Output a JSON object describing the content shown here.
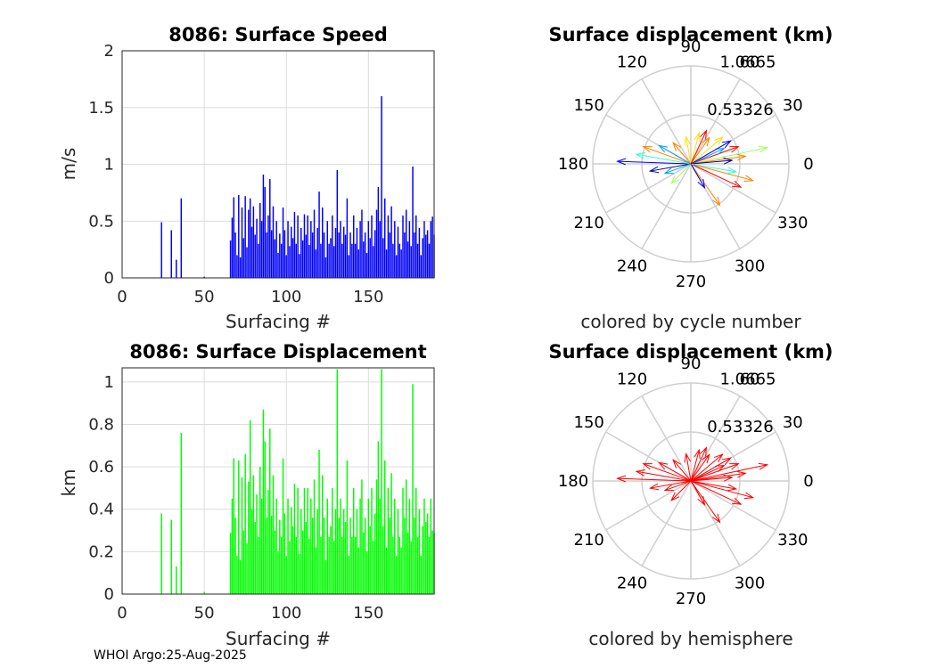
{
  "footer": "WHOI Argo:25-Aug-2025",
  "chart_data": [
    {
      "type": "bar",
      "title": "8086: Surface Speed",
      "xlabel": "Surfacing #",
      "ylabel": "m/s",
      "color": "#0000ff",
      "xlim": [
        0,
        190
      ],
      "ylim": [
        0,
        2
      ],
      "xticks": [
        0,
        50,
        100,
        150
      ],
      "xtick_labels": [
        "0",
        "50",
        "100",
        "150"
      ],
      "yticks": [
        0,
        0.5,
        1,
        1.5,
        2
      ],
      "ytick_labels": [
        "0",
        "0.5",
        "1",
        "1.5",
        "2"
      ],
      "x": [
        24,
        30,
        33,
        36,
        50,
        66,
        67,
        68,
        69,
        70,
        71,
        72,
        73,
        74,
        75,
        76,
        77,
        78,
        79,
        80,
        81,
        82,
        83,
        84,
        85,
        86,
        87,
        88,
        89,
        90,
        91,
        92,
        93,
        94,
        95,
        96,
        97,
        98,
        99,
        100,
        101,
        102,
        103,
        104,
        105,
        106,
        107,
        108,
        109,
        110,
        111,
        112,
        113,
        114,
        115,
        116,
        117,
        118,
        119,
        120,
        121,
        122,
        123,
        124,
        125,
        126,
        127,
        128,
        129,
        130,
        131,
        132,
        133,
        134,
        135,
        136,
        137,
        138,
        139,
        140,
        141,
        142,
        143,
        144,
        145,
        146,
        147,
        148,
        149,
        150,
        151,
        152,
        153,
        154,
        155,
        156,
        157,
        158,
        159,
        160,
        161,
        162,
        163,
        164,
        165,
        166,
        167,
        168,
        169,
        170,
        171,
        172,
        173,
        174,
        175,
        176,
        177,
        178,
        179,
        180,
        181,
        182,
        183,
        184,
        185,
        186,
        187,
        188,
        189,
        190
      ],
      "values": [
        0.49,
        0.42,
        0.16,
        0.7,
        0.01,
        0.33,
        0.53,
        0.71,
        0.4,
        0.2,
        0.73,
        0.18,
        0.62,
        0.35,
        0.72,
        0.27,
        0.6,
        0.7,
        0.45,
        0.63,
        0.38,
        0.52,
        0.3,
        0.66,
        0.5,
        0.91,
        0.8,
        0.4,
        0.55,
        0.87,
        0.42,
        0.63,
        0.34,
        0.5,
        0.22,
        0.39,
        0.3,
        0.62,
        0.42,
        0.2,
        0.5,
        0.28,
        0.45,
        0.35,
        0.58,
        0.3,
        0.55,
        0.21,
        0.44,
        0.33,
        0.56,
        0.38,
        0.55,
        0.29,
        0.5,
        0.4,
        0.6,
        0.25,
        0.44,
        0.76,
        0.3,
        0.62,
        0.4,
        0.18,
        0.5,
        0.3,
        0.35,
        0.55,
        0.28,
        0.44,
        0.95,
        0.4,
        0.5,
        0.3,
        0.45,
        0.38,
        0.7,
        0.2,
        0.4,
        0.3,
        0.55,
        0.3,
        0.44,
        0.25,
        0.5,
        0.6,
        0.32,
        0.4,
        0.22,
        0.5,
        0.35,
        0.55,
        0.28,
        0.42,
        0.6,
        0.8,
        0.5,
        1.6,
        0.35,
        0.7,
        0.25,
        0.55,
        0.4,
        0.63,
        0.3,
        0.5,
        0.2,
        0.45,
        0.3,
        0.25,
        0.55,
        0.4,
        0.6,
        0.32,
        0.5,
        0.28,
        0.98,
        0.4,
        0.55,
        0.3,
        0.44,
        0.2,
        0.35,
        0.5,
        0.38,
        0.42,
        0.3,
        0.5,
        0.54,
        0.38
      ]
    },
    {
      "type": "bar",
      "title": "8086: Surface Displacement",
      "xlabel": "Surfacing #",
      "ylabel": "km",
      "color": "#00ff00",
      "xlim": [
        0,
        190
      ],
      "ylim": [
        0,
        1.0665
      ],
      "xticks": [
        0,
        50,
        100,
        150
      ],
      "xtick_labels": [
        "0",
        "50",
        "100",
        "150"
      ],
      "yticks": [
        0,
        0.2,
        0.4,
        0.6,
        0.8,
        1
      ],
      "ytick_labels": [
        "0",
        "0.2",
        "0.4",
        "0.6",
        "0.8",
        "1"
      ],
      "x": [
        24,
        30,
        33,
        36,
        50,
        66,
        67,
        68,
        69,
        70,
        71,
        72,
        73,
        74,
        75,
        76,
        77,
        78,
        79,
        80,
        81,
        82,
        83,
        84,
        85,
        86,
        87,
        88,
        89,
        90,
        91,
        92,
        93,
        94,
        95,
        96,
        97,
        98,
        99,
        100,
        101,
        102,
        103,
        104,
        105,
        106,
        107,
        108,
        109,
        110,
        111,
        112,
        113,
        114,
        115,
        116,
        117,
        118,
        119,
        120,
        121,
        122,
        123,
        124,
        125,
        126,
        127,
        128,
        129,
        130,
        131,
        132,
        133,
        134,
        135,
        136,
        137,
        138,
        139,
        140,
        141,
        142,
        143,
        144,
        145,
        146,
        147,
        148,
        149,
        150,
        151,
        152,
        153,
        154,
        155,
        156,
        157,
        158,
        159,
        160,
        161,
        162,
        163,
        164,
        165,
        166,
        167,
        168,
        169,
        170,
        171,
        172,
        173,
        174,
        175,
        176,
        177,
        178,
        179,
        180,
        181,
        182,
        183,
        184,
        185,
        186,
        187,
        188,
        189,
        190
      ],
      "values": [
        0.38,
        0.35,
        0.13,
        0.76,
        0.01,
        0.29,
        0.45,
        0.64,
        0.36,
        0.18,
        0.63,
        0.16,
        0.55,
        0.3,
        0.66,
        0.24,
        0.53,
        0.82,
        0.4,
        0.56,
        0.34,
        0.47,
        0.27,
        0.6,
        0.45,
        0.87,
        0.72,
        0.36,
        0.49,
        0.78,
        0.37,
        0.56,
        0.3,
        0.45,
        0.2,
        0.35,
        0.27,
        0.64,
        0.38,
        0.18,
        0.45,
        0.25,
        0.41,
        0.32,
        0.52,
        0.27,
        0.5,
        0.19,
        0.4,
        0.3,
        0.5,
        0.34,
        0.5,
        0.26,
        0.45,
        0.36,
        0.54,
        0.22,
        0.4,
        0.68,
        0.27,
        0.56,
        0.36,
        0.16,
        0.45,
        0.27,
        0.32,
        0.5,
        0.25,
        0.4,
        1.06,
        0.36,
        0.45,
        0.27,
        0.4,
        0.34,
        0.63,
        0.18,
        0.36,
        0.27,
        0.5,
        0.27,
        0.4,
        0.22,
        0.45,
        0.54,
        0.29,
        0.36,
        0.2,
        0.45,
        0.32,
        0.5,
        0.25,
        0.38,
        0.54,
        0.72,
        0.45,
        1.06,
        0.32,
        0.63,
        0.22,
        0.5,
        0.36,
        0.57,
        0.27,
        0.45,
        0.18,
        0.4,
        0.27,
        0.22,
        0.5,
        0.36,
        0.54,
        0.29,
        0.45,
        0.25,
        0.99,
        0.36,
        0.5,
        0.27,
        0.4,
        0.18,
        0.32,
        0.45,
        0.34,
        0.38,
        0.27,
        0.45,
        0.3,
        0.29
      ]
    },
    {
      "type": "polar",
      "title": "Surface displacement (km)",
      "subtitle": "colored by cycle number",
      "rmax": 1.0665,
      "rings": [
        0.53326,
        1.0665
      ],
      "ring_labels": [
        "0.53326",
        "1.0665"
      ],
      "angle_ticks": [
        0,
        30,
        60,
        90,
        120,
        150,
        180,
        210,
        240,
        270,
        300,
        330
      ],
      "angle_labels": [
        "0",
        "30",
        "60",
        "90",
        "120",
        "150",
        "180",
        "210",
        "240",
        "270",
        "300",
        "330"
      ],
      "colormap": [
        "#00008f",
        "#0000ff",
        "#00a0ff",
        "#30ffd0",
        "#a0ff60",
        "#ffe000",
        "#ff8000",
        "#ff0000"
      ],
      "vectors": [
        {
          "angle": 178,
          "r": 0.8,
          "cycle": 40
        },
        {
          "angle": 12,
          "r": 0.85,
          "cycle": 100
        },
        {
          "angle": 8,
          "r": 0.6,
          "cycle": 150
        },
        {
          "angle": 20,
          "r": 0.55,
          "cycle": 180
        },
        {
          "angle": -15,
          "r": 0.7,
          "cycle": 150
        },
        {
          "angle": -25,
          "r": 0.6,
          "cycle": 175
        },
        {
          "angle": -55,
          "r": 0.55,
          "cycle": 165
        },
        {
          "angle": 55,
          "r": 0.35,
          "cycle": 150
        },
        {
          "angle": 40,
          "r": 0.45,
          "cycle": 120
        },
        {
          "angle": 160,
          "r": 0.55,
          "cycle": 150
        },
        {
          "angle": 170,
          "r": 0.6,
          "cycle": 90
        },
        {
          "angle": 150,
          "r": 0.4,
          "cycle": 70
        },
        {
          "angle": -135,
          "r": 0.3,
          "cycle": 110
        },
        {
          "angle": 100,
          "r": 0.3,
          "cycle": 130
        },
        {
          "angle": 75,
          "r": 0.35,
          "cycle": 140
        },
        {
          "angle": -60,
          "r": 0.3,
          "cycle": 30
        },
        {
          "angle": 5,
          "r": 0.45,
          "cycle": 20
        },
        {
          "angle": 25,
          "r": 0.4,
          "cycle": 60
        },
        {
          "angle": -10,
          "r": 0.5,
          "cycle": 80
        },
        {
          "angle": 190,
          "r": 0.45,
          "cycle": 15
        },
        {
          "angle": 200,
          "r": 0.3,
          "cycle": 50
        },
        {
          "angle": 130,
          "r": 0.3,
          "cycle": 160
        },
        {
          "angle": 65,
          "r": 0.4,
          "cycle": 170
        },
        {
          "angle": 30,
          "r": 0.5,
          "cycle": 40
        }
      ]
    },
    {
      "type": "polar",
      "title": "Surface displacement (km)",
      "subtitle": "colored by hemisphere",
      "rmax": 1.0665,
      "rings": [
        0.53326,
        1.0665
      ],
      "ring_labels": [
        "0.53326",
        "1.0665"
      ],
      "angle_ticks": [
        0,
        30,
        60,
        90,
        120,
        150,
        180,
        210,
        240,
        270,
        300,
        330
      ],
      "angle_labels": [
        "0",
        "30",
        "60",
        "90",
        "120",
        "150",
        "180",
        "210",
        "240",
        "270",
        "300",
        "330"
      ],
      "color": "#ff0000",
      "vectors": [
        {
          "angle": 178,
          "r": 0.8
        },
        {
          "angle": 12,
          "r": 0.85
        },
        {
          "angle": 8,
          "r": 0.6
        },
        {
          "angle": 20,
          "r": 0.55
        },
        {
          "angle": -15,
          "r": 0.7
        },
        {
          "angle": -25,
          "r": 0.6
        },
        {
          "angle": -55,
          "r": 0.55
        },
        {
          "angle": 55,
          "r": 0.35
        },
        {
          "angle": 40,
          "r": 0.45
        },
        {
          "angle": 160,
          "r": 0.55
        },
        {
          "angle": 170,
          "r": 0.6
        },
        {
          "angle": 150,
          "r": 0.4
        },
        {
          "angle": -135,
          "r": 0.3
        },
        {
          "angle": 100,
          "r": 0.3
        },
        {
          "angle": 75,
          "r": 0.35
        },
        {
          "angle": -60,
          "r": 0.3
        },
        {
          "angle": 5,
          "r": 0.45
        },
        {
          "angle": 25,
          "r": 0.4
        },
        {
          "angle": -10,
          "r": 0.5
        },
        {
          "angle": 190,
          "r": 0.45
        },
        {
          "angle": 200,
          "r": 0.3
        },
        {
          "angle": 130,
          "r": 0.3
        },
        {
          "angle": 65,
          "r": 0.4
        },
        {
          "angle": 30,
          "r": 0.5
        }
      ]
    }
  ]
}
